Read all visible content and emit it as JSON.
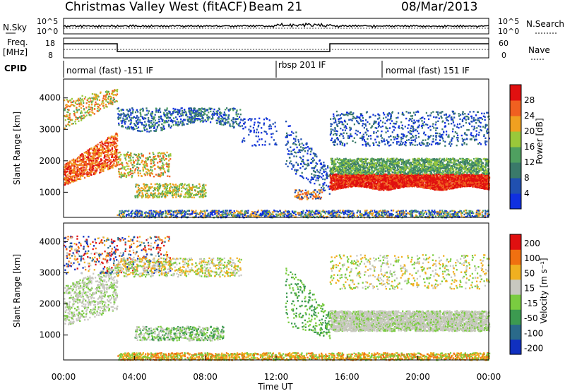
{
  "header": {
    "title": "Christmas Valley West (fitACF)",
    "beam": "Beam 21",
    "date": "08/Mar/2013"
  },
  "strips": {
    "nsky_label": "N.Sky",
    "nsky_ticks": [
      "10^5",
      "10^0"
    ],
    "nsearch_label": "N.Search",
    "freq_label_1": "Freq.",
    "freq_label_2": "[MHz]",
    "freq_ticks": [
      "18",
      "8"
    ],
    "nave_label": "Nave",
    "nave_ticks": [
      "60",
      "0"
    ],
    "cpid_label": "CPID"
  },
  "cpid_segments": [
    {
      "label": "normal (fast) -151 IF",
      "start_h": 0
    },
    {
      "label": "rbsp 201 IF",
      "start_h": 12
    },
    {
      "label": "normal (fast) 151 IF",
      "start_h": 18
    }
  ],
  "chart_data": [
    {
      "type": "heatmap",
      "name": "power",
      "ylabel": "Slant Range [km]",
      "yticks": [
        "1000",
        "2000",
        "3000",
        "4000"
      ],
      "ylim": [
        200,
        4600
      ],
      "colorbar_label": "Power [dB]",
      "colorbar_ticks": [
        "4",
        "8",
        "12",
        "16",
        "20",
        "24",
        "28"
      ],
      "colorbar_colors": [
        "#1030e0",
        "#2050b0",
        "#3a7a6a",
        "#4fa060",
        "#9ac83a",
        "#f0a020",
        "#f06020",
        "#e01010"
      ]
    },
    {
      "type": "heatmap",
      "name": "velocity",
      "ylabel": "Slant Range [km]",
      "yticks": [
        "1000",
        "2000",
        "3000",
        "4000"
      ],
      "ylim": [
        200,
        4600
      ],
      "colorbar_label": "Velocity [m s⁻¹]",
      "colorbar_ticks": [
        "200",
        "100",
        "50",
        "15",
        "-15",
        "-50",
        "-100",
        "-200"
      ],
      "colorbar_colors": [
        "#1030c0",
        "#2a6a8a",
        "#3c9a50",
        "#7acc40",
        "#c8c8c0",
        "#f0b020",
        "#f07010",
        "#e01010"
      ],
      "xlabel": "Time UT",
      "xticks": [
        "00:00",
        "04:00",
        "08:00",
        "12:00",
        "16:00",
        "20:00",
        "00:00"
      ]
    }
  ]
}
